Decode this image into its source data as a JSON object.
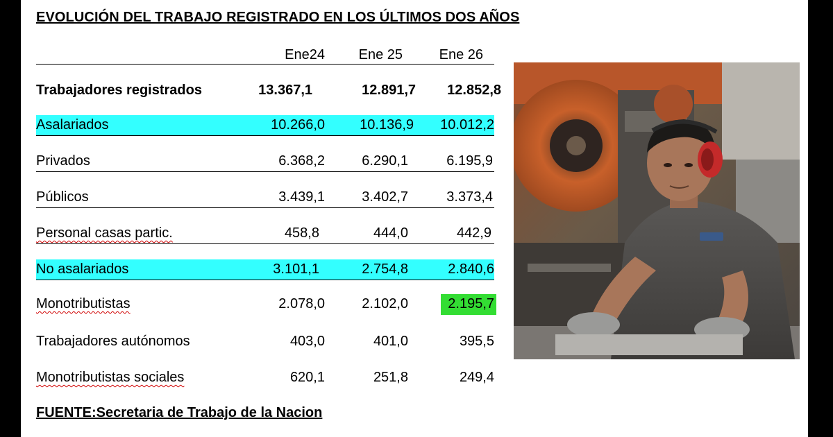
{
  "title": "EVOLUCIÓN DEL TRABAJO REGISTRADO EN LOS ÚLTIMOS DOS AÑOS",
  "columns": [
    "Ene24",
    "Ene 25",
    "Ene 26"
  ],
  "rows": [
    {
      "label": "Trabajadores registrados",
      "values": [
        "13.367,1",
        "12.891,7",
        "12.852,8"
      ]
    },
    {
      "label": "Asalariados",
      "values": [
        "10.266,0",
        "10.136,9",
        "10.012,2"
      ]
    },
    {
      "label": "Privados",
      "values": [
        "6.368,2",
        "6.290,1",
        "6.195,9"
      ]
    },
    {
      "label": "Públicos",
      "values": [
        "3.439,1",
        "3.402,7",
        "3.373,4"
      ]
    },
    {
      "label": "Personal casas partic.",
      "values": [
        "458,8",
        "444,0",
        "442,9"
      ]
    },
    {
      "label": "No asalariados",
      "values": [
        "3.101,1",
        "2.754,8",
        "2.840,6"
      ]
    },
    {
      "label": "Monotributistas",
      "values": [
        "2.078,0",
        "2.102,0",
        "2.195,7"
      ]
    },
    {
      "label": "Trabajadores autónomos",
      "values": [
        "403,0",
        "401,0",
        "395,5"
      ]
    },
    {
      "label": "Monotributistas sociales",
      "values": [
        "620,1",
        "251,8",
        "249,4"
      ]
    }
  ],
  "source": "FUENTE:Secretaria de Trabajo de la Nacion",
  "colors": {
    "highlight_row": "#33ffff",
    "highlight_cell": "#33dd33",
    "page_background": "#ffffff",
    "frame": "#000000"
  },
  "photo": {
    "icon": "factory-worker-photo"
  }
}
